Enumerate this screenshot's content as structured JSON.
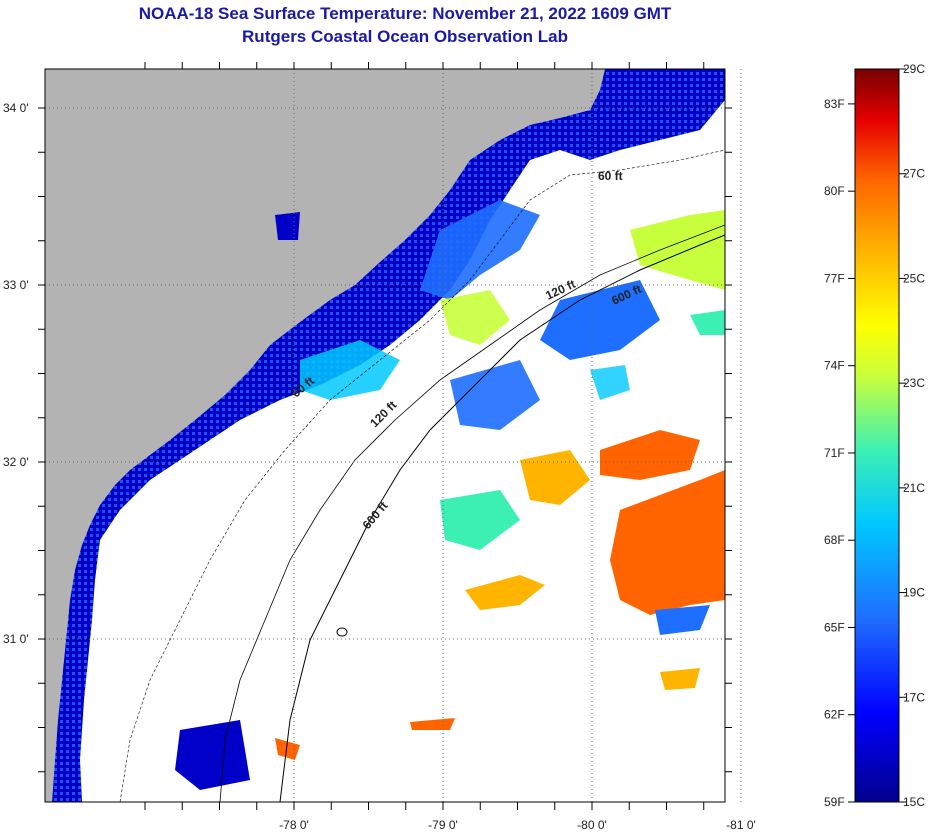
{
  "header": {
    "title_line1": "NOAA-18 Sea Surface Temperature:  November 21, 2022 1609 GMT",
    "title_line2": "Rutgers Coastal Ocean Observation Lab"
  },
  "axes": {
    "lat_labels": [
      {
        "value": 34,
        "text": "34 0'"
      },
      {
        "value": 33,
        "text": "33 0'"
      },
      {
        "value": 32,
        "text": "32 0'"
      },
      {
        "value": 31,
        "text": "31 0'"
      }
    ],
    "lon_labels": [
      {
        "value": -81,
        "text": "-81 0'"
      },
      {
        "value": -80,
        "text": "-80 0'"
      },
      {
        "value": -79,
        "text": "-79 0'"
      },
      {
        "value": -78,
        "text": "-78 0'"
      }
    ],
    "grid": "dotted"
  },
  "contours": [
    {
      "label": "60 ft"
    },
    {
      "label": "120 ft"
    },
    {
      "label": "600 ft"
    },
    {
      "label": "120 ft"
    },
    {
      "label": "600 ft"
    },
    {
      "label": "60 ft"
    }
  ],
  "colorbar": {
    "min_c": 15,
    "max_c": 29,
    "celsius_labels": [
      "29C",
      "27C",
      "25C",
      "23C",
      "21C",
      "19C",
      "17C",
      "15C"
    ],
    "fahrenheit_labels": [
      "83F",
      "80F",
      "77F",
      "74F",
      "71F",
      "68F",
      "65F",
      "62F",
      "59F"
    ],
    "palette": [
      "#00008b",
      "#0000ff",
      "#1e6eff",
      "#00c8ff",
      "#3cf0b4",
      "#c8ff3c",
      "#ffff00",
      "#ffb400",
      "#ff6400",
      "#e60000",
      "#780000"
    ]
  },
  "colors": {
    "land": "#b3b3b3",
    "no_data": "#ffffff",
    "coast_line": "#000000",
    "title": "#1a1aa6"
  }
}
